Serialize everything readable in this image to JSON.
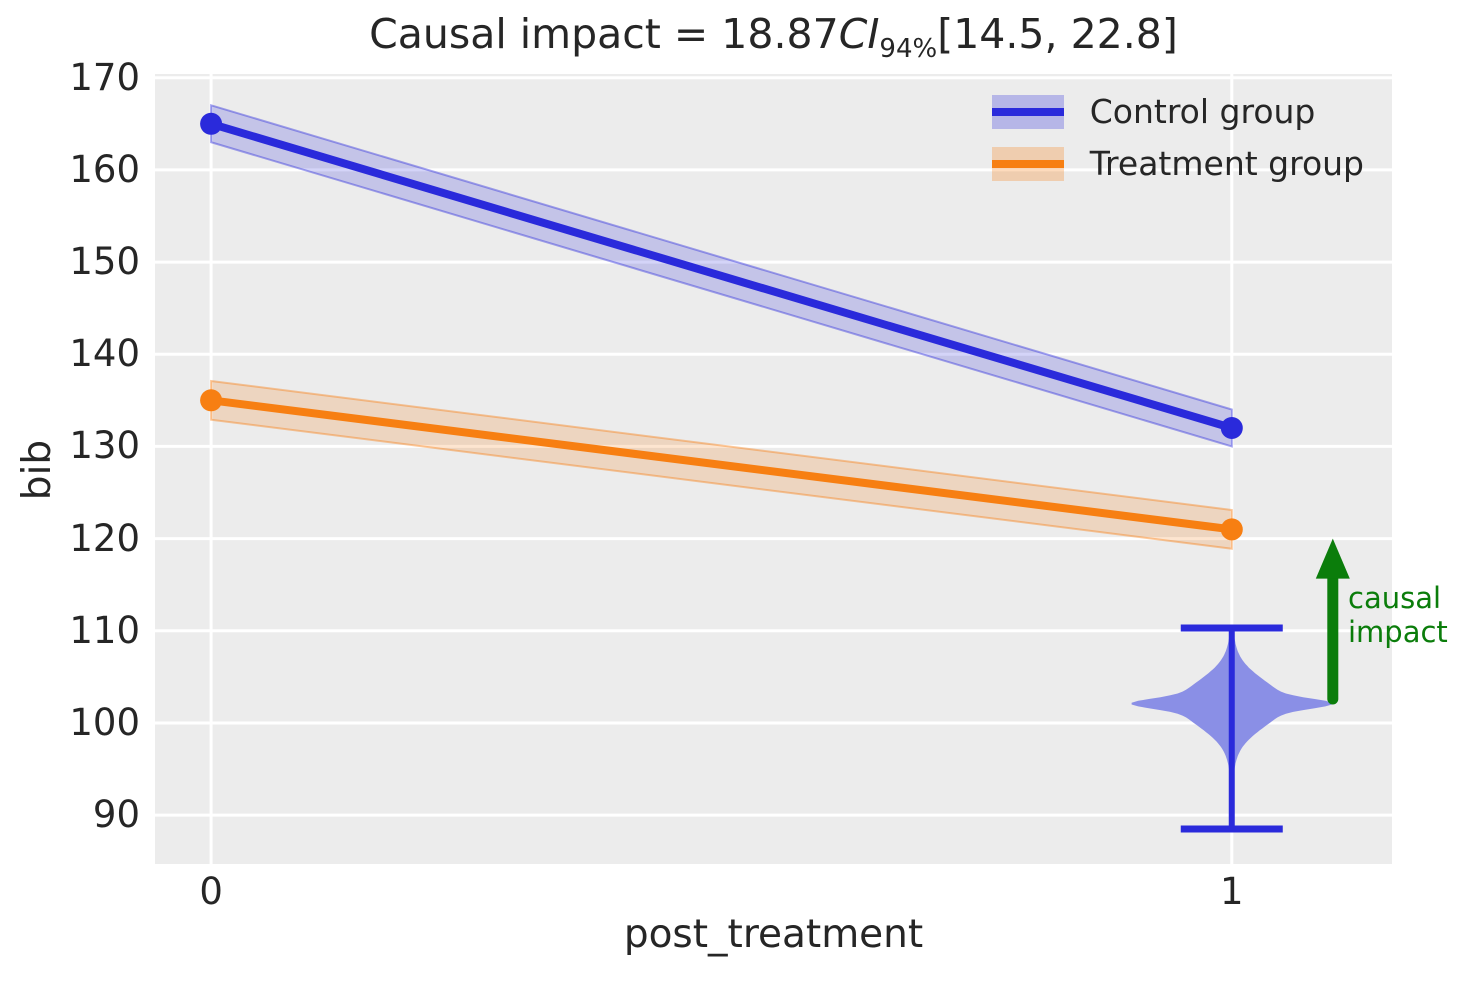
{
  "title": {
    "prefix": "Causal impact = 18.87",
    "ci": "CI",
    "ci_sub": "94%",
    "interval": "[14.5, 22.8]"
  },
  "axes": {
    "xlabel": "post_treatment",
    "ylabel": "bib",
    "x_ticks": [
      {
        "value": 0,
        "label": "0"
      },
      {
        "value": 1,
        "label": "1"
      }
    ],
    "y_ticks": [
      {
        "value": 90,
        "label": "90"
      },
      {
        "value": 100,
        "label": "100"
      },
      {
        "value": 110,
        "label": "110"
      },
      {
        "value": 120,
        "label": "120"
      },
      {
        "value": 130,
        "label": "130"
      },
      {
        "value": 140,
        "label": "140"
      },
      {
        "value": 150,
        "label": "150"
      },
      {
        "value": 160,
        "label": "160"
      },
      {
        "value": 170,
        "label": "170"
      }
    ]
  },
  "legend": [
    {
      "label": "Control group",
      "color": "#2A2ADB"
    },
    {
      "label": "Treatment group",
      "color": "#F77F12"
    }
  ],
  "annotation": {
    "line1": "causal",
    "line2": "impact",
    "color": "#0B7D0B"
  },
  "chart_data": {
    "type": "line",
    "title": "Causal impact = 18.87 CI_94% [14.5, 22.8]",
    "xlabel": "post_treatment",
    "ylabel": "bib",
    "xlim": [
      -0.055,
      1.157
    ],
    "ylim": [
      84.7,
      170.4
    ],
    "grid": true,
    "legend_position": "upper right",
    "x": [
      0,
      1
    ],
    "series": [
      {
        "name": "Control group",
        "values": [
          165,
          132
        ],
        "ci_halfwidth": 2.0,
        "color": "#2A2ADB"
      },
      {
        "name": "Treatment group",
        "values": [
          135,
          121
        ],
        "ci_halfwidth": 2.1,
        "color": "#F77F12"
      }
    ],
    "counterfactual_violin": {
      "x": 1,
      "mean": 102.1,
      "whisker_low": 88.5,
      "whisker_high": 110.3,
      "fill_color": "#8A8FE6",
      "line_color": "#2A2ADB"
    },
    "causal_impact": {
      "value": 18.87,
      "ci_level": "94%",
      "ci": [
        14.5,
        22.8
      ],
      "arrow_x": 1.099,
      "arrow_from": 102.6,
      "arrow_to": 120.0,
      "color": "#0B7D0B"
    }
  }
}
